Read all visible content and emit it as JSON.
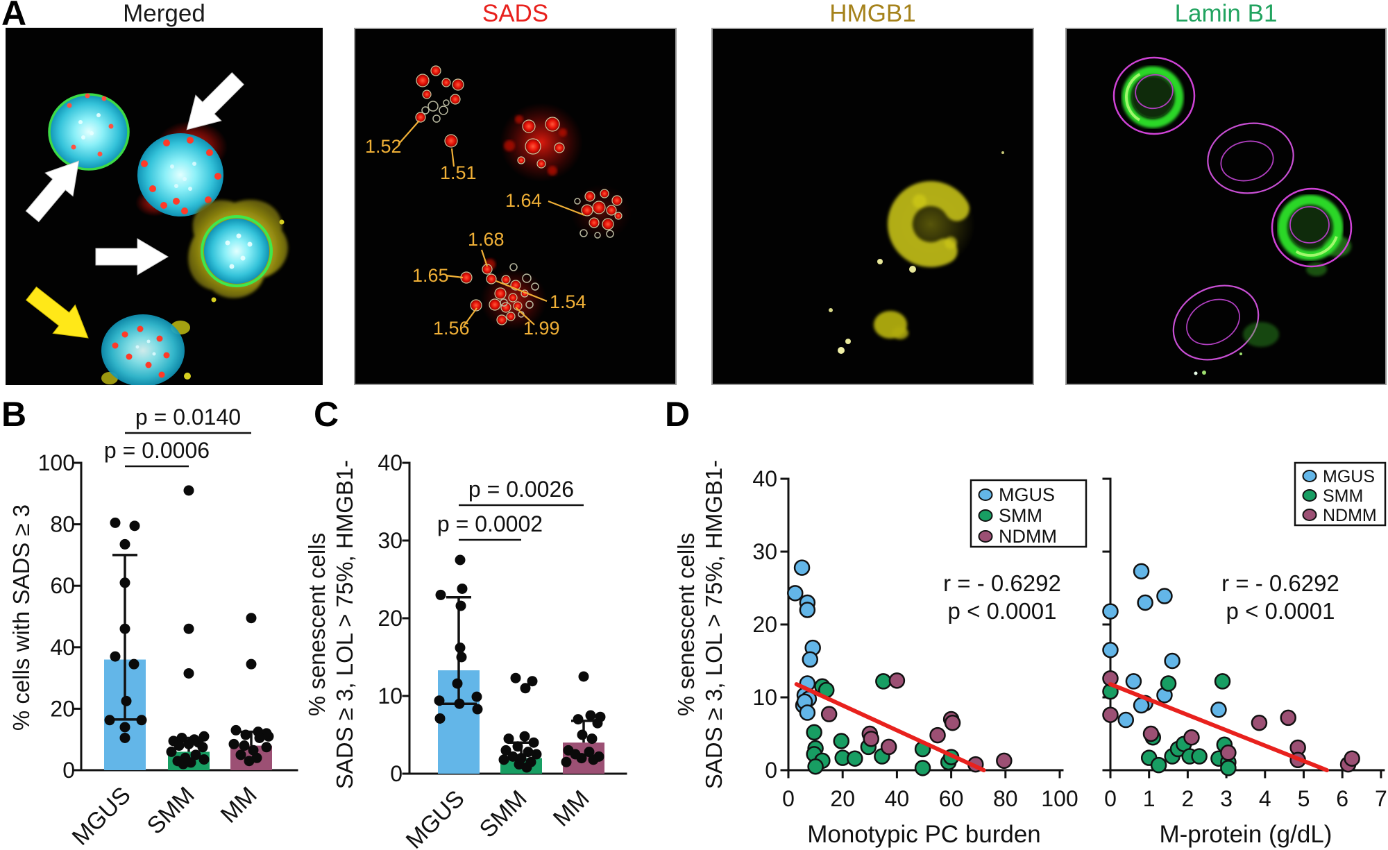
{
  "figure": {
    "panel_labels": {
      "a": "A",
      "b": "B",
      "c": "C",
      "d": "D"
    }
  },
  "panel_a": {
    "images": [
      {
        "title": "Merged",
        "title_color": "#1a1a1a"
      },
      {
        "title": "SADS",
        "title_color": "#e8211d"
      },
      {
        "title": "HMGB1",
        "title_color": "#a5821b"
      },
      {
        "title": "Lamin B1",
        "title_color": "#21a35f"
      }
    ],
    "sads_spot_labels": [
      "1.52",
      "1.51",
      "1.64",
      "1.68",
      "1.65",
      "1.54",
      "1.56",
      "1.99"
    ]
  },
  "colors": {
    "mgus": "#63b6e8",
    "smm": "#189e63",
    "ndmm": "#9c5074",
    "accent_red": "#e8211d",
    "ink": "#111111"
  },
  "chart_data": [
    {
      "panel": "B",
      "type": "bar",
      "ylabel": "% cells with SADS ≥ 3",
      "ylim": [
        0,
        100
      ],
      "yticks": [
        0,
        20,
        40,
        60,
        80,
        100
      ],
      "categories": [
        "MGUS",
        "SMM",
        "MM"
      ],
      "bar_values": [
        36,
        6,
        8
      ],
      "bar_colors": [
        "#63b6e8",
        "#189e63",
        "#9c5074"
      ],
      "error_low": [
        16.5,
        null,
        null
      ],
      "error_high": [
        70,
        10.5,
        12.5
      ],
      "points": {
        "MGUS": [
          80.5,
          79.5,
          73.5,
          61,
          46,
          37,
          34.5,
          22.5,
          16.3,
          16.3,
          14,
          10.5
        ],
        "SMM": [
          91,
          46,
          31.5,
          11,
          10.5,
          10,
          9.5,
          9,
          8.5,
          8,
          7.5,
          6,
          5,
          4,
          3.5,
          3,
          2.5,
          2
        ],
        "MM": [
          49.5,
          34.5,
          13,
          12.5,
          12,
          11.5,
          11,
          10.5,
          8.5,
          8,
          7.5,
          6.5,
          5,
          4,
          3
        ]
      },
      "pvalues": [
        {
          "label": "p = 0.0140",
          "from": 0,
          "to": 2
        },
        {
          "label": "p = 0.0006",
          "from": 0,
          "to": 1
        }
      ]
    },
    {
      "panel": "C",
      "type": "bar",
      "ylabel_lines": [
        "% senescent cells",
        "SADS ≥ 3, LOL > 75%, HMGB1-"
      ],
      "ylim": [
        0,
        40
      ],
      "yticks": [
        0,
        10,
        20,
        30,
        40
      ],
      "categories": [
        "MGUS",
        "SMM",
        "MM"
      ],
      "bar_values": [
        13.3,
        2,
        4
      ],
      "bar_colors": [
        "#63b6e8",
        "#189e63",
        "#9c5074"
      ],
      "error_low": [
        9,
        null,
        null
      ],
      "error_high": [
        22.7,
        4,
        6.8
      ],
      "points": {
        "MGUS": [
          27.5,
          23.8,
          23,
          21.6,
          16.2,
          15,
          11.6,
          9.9,
          9.4,
          9,
          8.3,
          7.1
        ],
        "SMM": [
          12.3,
          11.9,
          11,
          4.8,
          4.5,
          4,
          3.5,
          3,
          2.8,
          2.5,
          2.2,
          2,
          1.8,
          1.5,
          1.2,
          0.8
        ],
        "MM": [
          12.5,
          7.5,
          7.3,
          7,
          6.5,
          5,
          4.5,
          3,
          2.8,
          2.5,
          2.2,
          2,
          1.8,
          1.5
        ]
      },
      "pvalues": [
        {
          "label": "p = 0.0026",
          "from": 0,
          "to": 2
        },
        {
          "label": "p = 0.0002",
          "from": 0,
          "to": 1
        }
      ]
    },
    {
      "panel": "D-left",
      "type": "scatter",
      "xlabel": "Monotypic PC burden",
      "ylabel_lines": [
        "% senescent cells",
        "SADS ≥ 3, LOL > 75%, HMGB1-"
      ],
      "xlim": [
        0,
        100
      ],
      "xticks": [
        0,
        20,
        40,
        60,
        80,
        100
      ],
      "ylim": [
        0,
        40
      ],
      "yticks": [
        0,
        10,
        20,
        30,
        40
      ],
      "annotation": [
        "r = - 0.6292",
        "p < 0.0001"
      ],
      "legend": [
        {
          "label": "MGUS",
          "color": "#63b6e8"
        },
        {
          "label": "SMM",
          "color": "#189e63"
        },
        {
          "label": "NDMM",
          "color": "#9c5074"
        }
      ],
      "trend_line": {
        "x1": 3,
        "y1": 11.8,
        "x2": 72,
        "y2": 0,
        "color": "#e8211d"
      },
      "series": {
        "MGUS": [
          [
            5,
            27.8
          ],
          [
            2.5,
            24.3
          ],
          [
            7,
            23
          ],
          [
            7,
            22
          ],
          [
            9,
            16.8
          ],
          [
            8,
            15.2
          ],
          [
            7,
            11.9
          ],
          [
            6,
            10.3
          ],
          [
            7.5,
            9.8
          ],
          [
            5.5,
            8.9
          ],
          [
            6,
            9.4
          ],
          [
            7,
            7.9
          ]
        ],
        "SMM": [
          [
            12.5,
            11.5
          ],
          [
            14,
            11
          ],
          [
            35,
            12.2
          ],
          [
            9.5,
            5.2
          ],
          [
            10,
            3
          ],
          [
            9.5,
            2.2
          ],
          [
            12.5,
            1.3
          ],
          [
            10,
            0.5
          ],
          [
            19.5,
            4
          ],
          [
            20,
            1.7
          ],
          [
            24.5,
            1.6
          ],
          [
            29.5,
            3.2
          ],
          [
            34.5,
            1.9
          ],
          [
            49.5,
            2.9
          ],
          [
            49.5,
            0.3
          ],
          [
            59,
            1.1
          ],
          [
            60,
            1.8
          ]
        ],
        "NDMM": [
          [
            15,
            7.7
          ],
          [
            30,
            5
          ],
          [
            30.5,
            4.3
          ],
          [
            37,
            3.2
          ],
          [
            40,
            12.3
          ],
          [
            55,
            4.8
          ],
          [
            60,
            7
          ],
          [
            60.5,
            6.5
          ],
          [
            69,
            0.8
          ],
          [
            79.5,
            1.3
          ]
        ]
      }
    },
    {
      "panel": "D-right",
      "type": "scatter",
      "xlabel": "M-protein (g/dL)",
      "xlim": [
        0,
        7
      ],
      "xticks": [
        0,
        1,
        2,
        3,
        4,
        5,
        6,
        7
      ],
      "ylim": [
        0,
        40
      ],
      "yticks": [
        0,
        10,
        20,
        30,
        40
      ],
      "y_tick_labels_visible": false,
      "annotation": [
        "r = - 0.6292",
        "p < 0.0001"
      ],
      "legend": [
        {
          "label": "MGUS",
          "color": "#63b6e8"
        },
        {
          "label": "SMM",
          "color": "#189e63"
        },
        {
          "label": "NDMM",
          "color": "#9c5074"
        }
      ],
      "trend_line": {
        "x1": 0,
        "y1": 11.8,
        "x2": 5.6,
        "y2": 0,
        "color": "#e8211d"
      },
      "series": {
        "MGUS": [
          [
            0.8,
            27.3
          ],
          [
            1.4,
            23.9
          ],
          [
            0.9,
            23
          ],
          [
            0,
            21.8
          ],
          [
            0,
            16.5
          ],
          [
            1.6,
            15
          ],
          [
            0.6,
            12.2
          ],
          [
            1.4,
            10.3
          ],
          [
            0.9,
            9.2
          ],
          [
            0.8,
            8.9
          ],
          [
            2.8,
            8.3
          ],
          [
            0.4,
            6.9
          ]
        ],
        "SMM": [
          [
            0,
            10.8
          ],
          [
            1.5,
            11.9
          ],
          [
            2.9,
            12.2
          ],
          [
            1.1,
            4.5
          ],
          [
            1,
            1.7
          ],
          [
            1.25,
            0.7
          ],
          [
            1.6,
            1.9
          ],
          [
            1.75,
            2.9
          ],
          [
            1.9,
            3.6
          ],
          [
            2.05,
            1.9
          ],
          [
            2.3,
            1.9
          ],
          [
            2.8,
            1.6
          ],
          [
            2.95,
            3.5
          ],
          [
            3.05,
            1.1
          ],
          [
            3.05,
            0.3
          ]
        ],
        "NDMM": [
          [
            0,
            12.6
          ],
          [
            0,
            7.6
          ],
          [
            1.05,
            5
          ],
          [
            2.1,
            4.5
          ],
          [
            3.05,
            2.4
          ],
          [
            3.85,
            6.5
          ],
          [
            4.6,
            7.2
          ],
          [
            4.85,
            3.1
          ],
          [
            4.85,
            1.4
          ],
          [
            6.15,
            0.8
          ],
          [
            6.25,
            1.6
          ]
        ]
      }
    }
  ]
}
